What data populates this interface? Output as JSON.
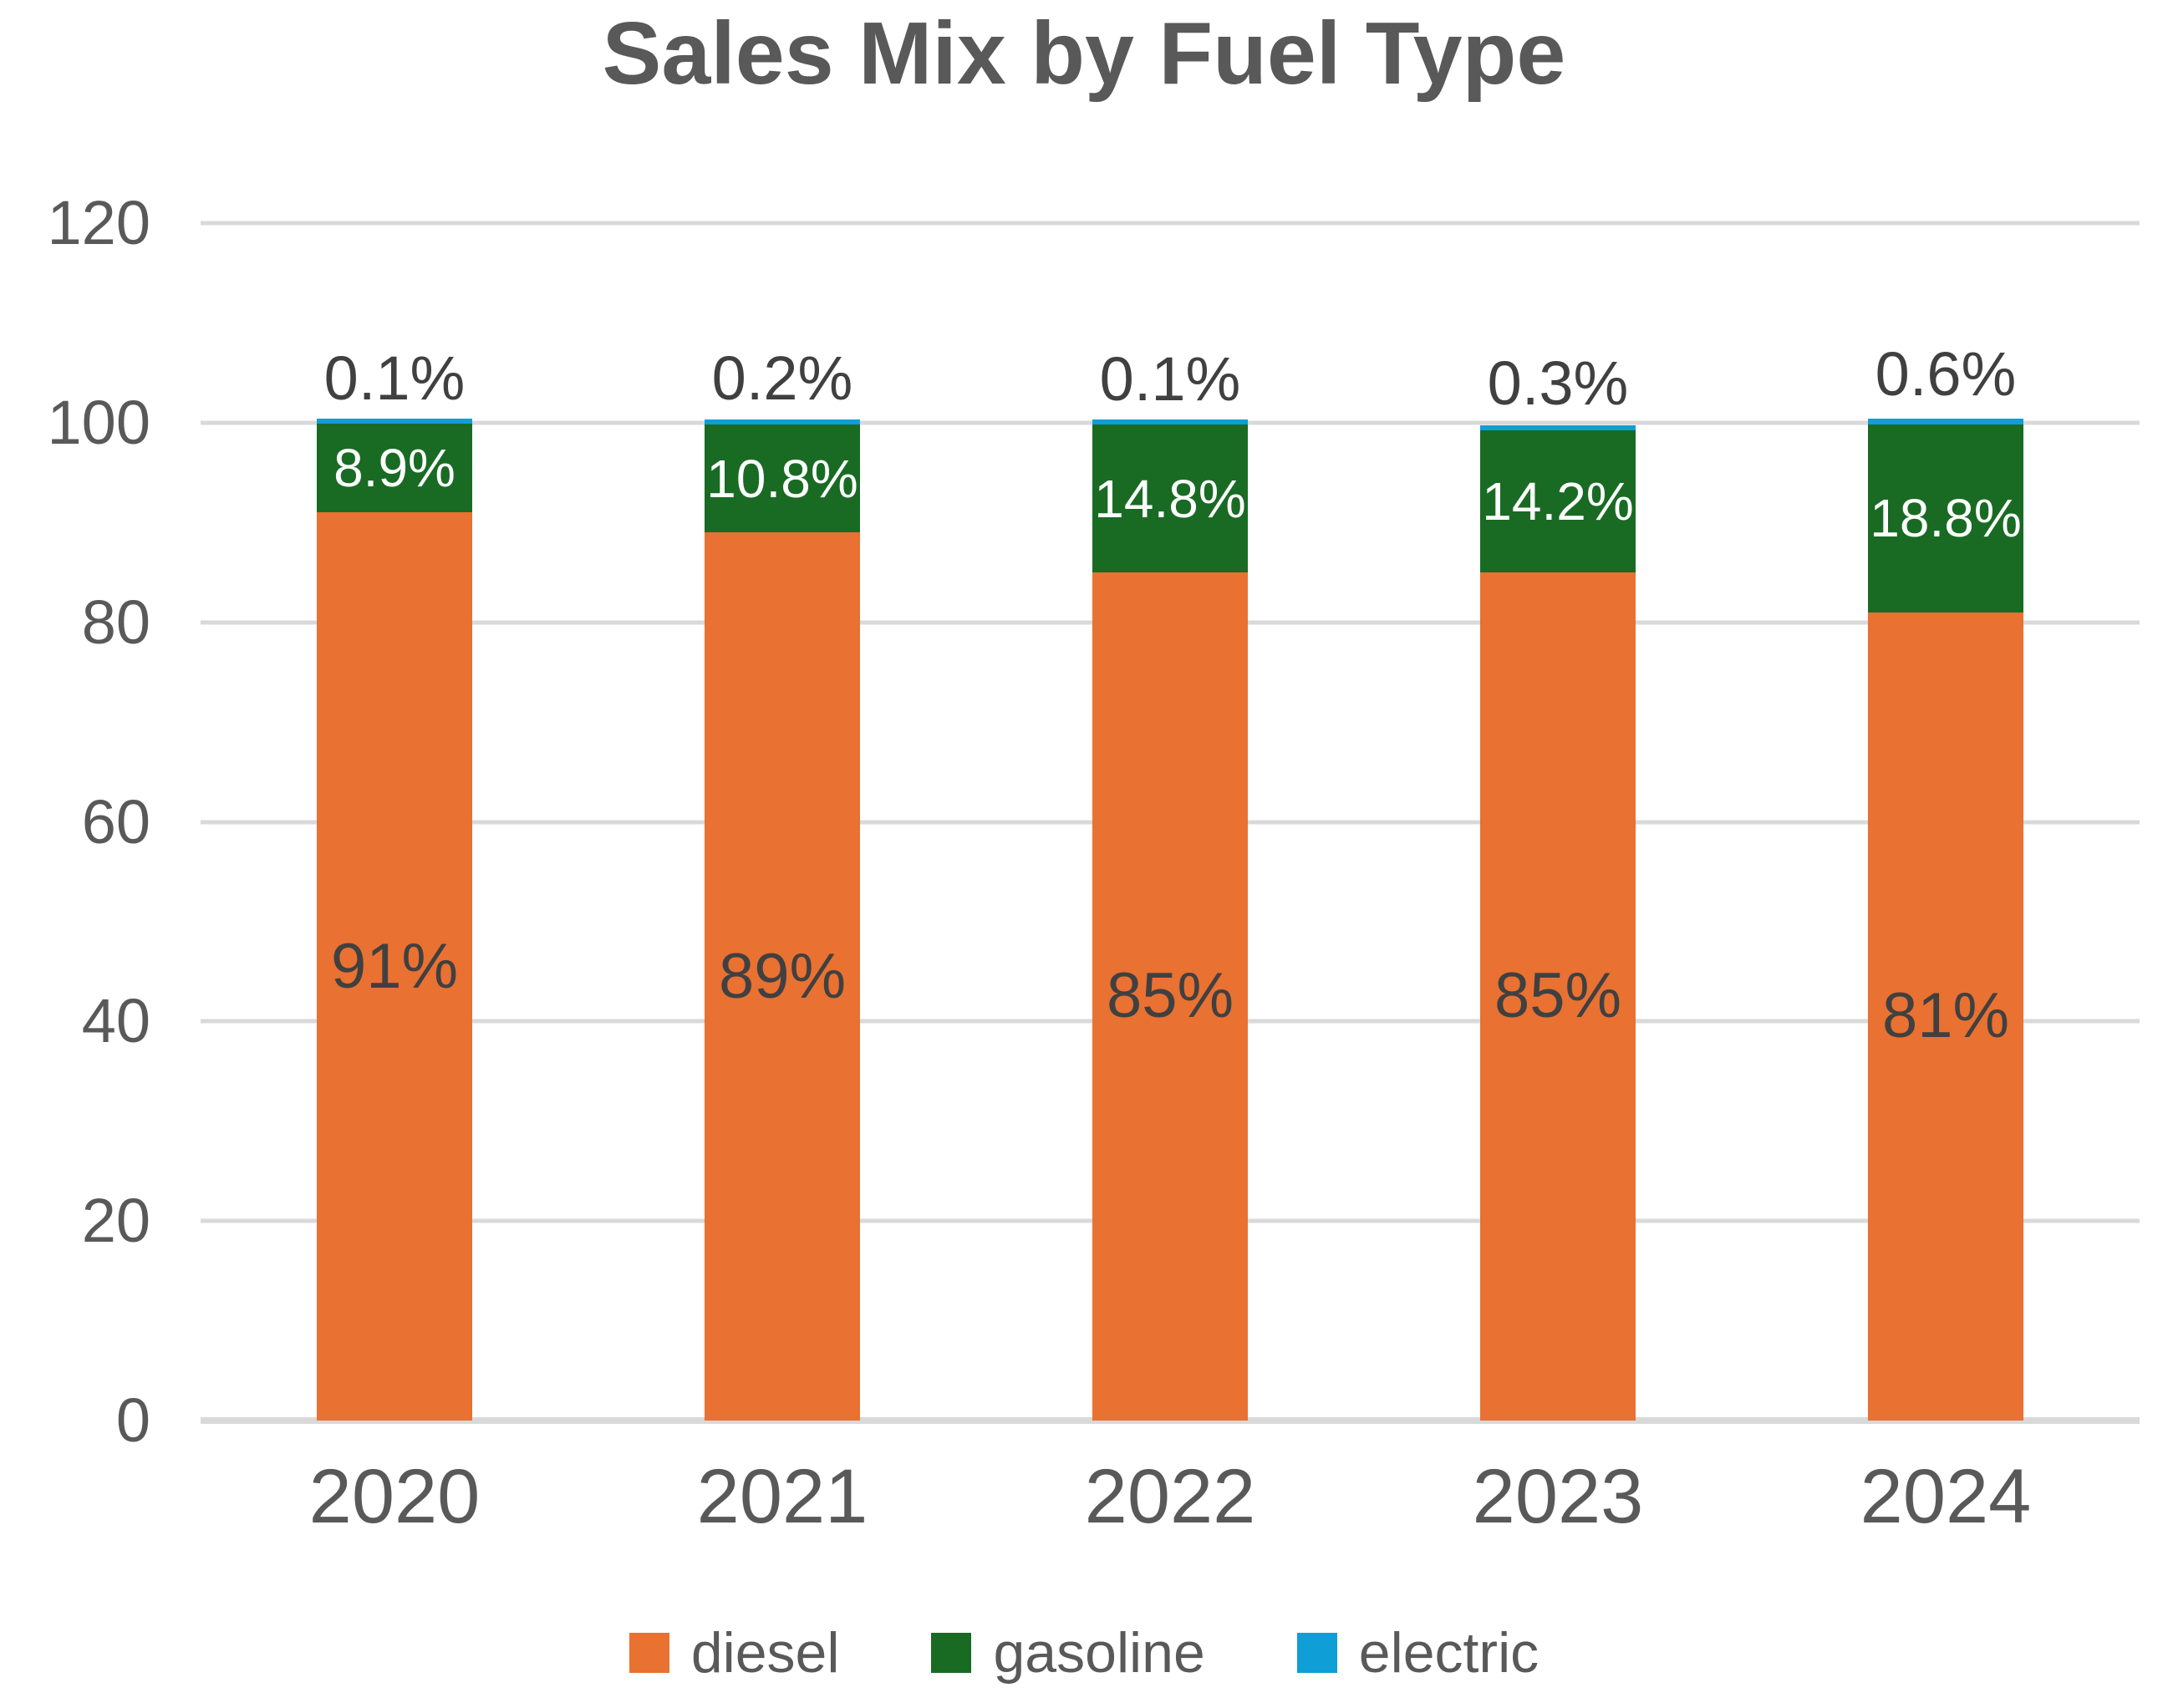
{
  "chart_data": {
    "type": "bar",
    "stacked": true,
    "title": "Sales Mix by Fuel Type",
    "categories": [
      "2020",
      "2021",
      "2022",
      "2023",
      "2024"
    ],
    "series": [
      {
        "name": "diesel",
        "color": "#E97132",
        "values": [
          91,
          89,
          85,
          85,
          81
        ],
        "data_labels": [
          "91%",
          "89%",
          "85%",
          "85%",
          "81%"
        ],
        "label_color": "#404040",
        "label_placement": "center"
      },
      {
        "name": "gasoline",
        "color": "#196B24",
        "values": [
          8.9,
          10.8,
          14.8,
          14.2,
          18.8
        ],
        "data_labels": [
          "8.9%",
          "10.8%",
          "14.8%",
          "14.2%",
          "18.8%"
        ],
        "label_color": "#FFFFFF",
        "label_placement": "center"
      },
      {
        "name": "electric",
        "color": "#0F9ED5",
        "values": [
          0.1,
          0.2,
          0.1,
          0.3,
          0.6
        ],
        "data_labels": [
          "0.1%",
          "0.2%",
          "0.1%",
          "0.3%",
          "0.6%"
        ],
        "label_color": "#404040",
        "label_placement": "above"
      }
    ],
    "y_axis": {
      "min": 0,
      "max": 120,
      "step": 20,
      "tick_labels": [
        "0",
        "20",
        "40",
        "60",
        "80",
        "100",
        "120"
      ]
    },
    "grid": true,
    "legend_position": "bottom",
    "legend_entries": [
      "diesel",
      "gasoline",
      "electric"
    ],
    "style_colors": {
      "gridline": "#D9D9D9",
      "axis_text": "#595959",
      "title_text": "#595959"
    }
  }
}
